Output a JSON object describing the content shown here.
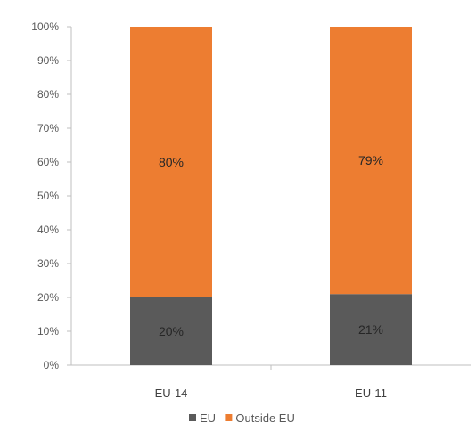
{
  "chart_data": {
    "type": "bar",
    "stacked": true,
    "percent": true,
    "categories": [
      "EU-14",
      "EU-11"
    ],
    "series": [
      {
        "name": "EU",
        "values": [
          20,
          21
        ],
        "labels": [
          "20%",
          "21%"
        ],
        "color": "#5a5a5a"
      },
      {
        "name": "Outside EU",
        "values": [
          80,
          79
        ],
        "labels": [
          "80%",
          "79%"
        ],
        "color": "#ed7d31"
      }
    ],
    "yticks": [
      "0%",
      "10%",
      "20%",
      "30%",
      "40%",
      "50%",
      "60%",
      "70%",
      "80%",
      "90%",
      "100%"
    ],
    "ylim": [
      0,
      100
    ],
    "grid": false,
    "legend": "bottom"
  }
}
